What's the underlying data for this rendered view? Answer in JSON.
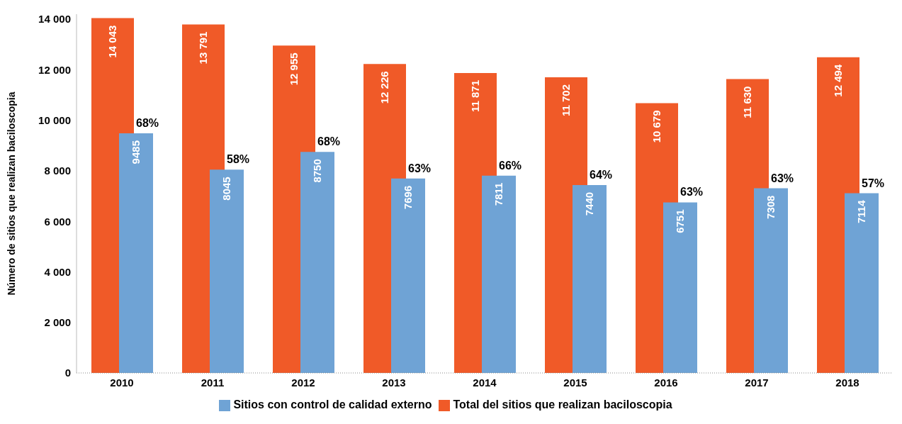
{
  "chart_data": {
    "type": "bar",
    "ylabel": "Número de sitios que realizan baciloscopia",
    "categories": [
      "2010",
      "2011",
      "2012",
      "2013",
      "2014",
      "2015",
      "2016",
      "2017",
      "2018"
    ],
    "series": [
      {
        "name": "Total del sitios que realizan baciloscopia",
        "color": "#f05a28",
        "values": [
          14043,
          13791,
          12955,
          12226,
          11871,
          11702,
          10679,
          11630,
          12494
        ],
        "value_labels": [
          "14 043",
          "13 791",
          "12 955",
          "12 226",
          "11 871",
          "11 702",
          "10 679",
          "11 630",
          "12 494"
        ]
      },
      {
        "name": "Sitios con control de calidad externo",
        "color": "#6fa3d5",
        "values": [
          9485,
          8045,
          8750,
          7696,
          7811,
          7440,
          6751,
          7308,
          7114
        ],
        "value_labels": [
          "9485",
          "8045",
          "8750",
          "7696",
          "7811",
          "7440",
          "6751",
          "7308",
          "7114"
        ]
      }
    ],
    "annotations": [
      {
        "text": "68%",
        "x": "2010",
        "y": 9485
      },
      {
        "text": "58%",
        "x": "2011",
        "y": 8045
      },
      {
        "text": "68%",
        "x": "2012",
        "y": 8750
      },
      {
        "text": "63%",
        "x": "2013",
        "y": 7696
      },
      {
        "text": "66%",
        "x": "2014",
        "y": 7811
      },
      {
        "text": "64%",
        "x": "2015",
        "y": 7440
      },
      {
        "text": "63%",
        "x": "2016",
        "y": 6751
      },
      {
        "text": "63%",
        "x": "2017",
        "y": 7308
      },
      {
        "text": "57%",
        "x": "2018",
        "y": 7114
      }
    ],
    "ylim": [
      0,
      14200
    ],
    "yticks": [
      {
        "value": 0,
        "label": "0"
      },
      {
        "value": 2000,
        "label": "2 000"
      },
      {
        "value": 4000,
        "label": "4 000"
      },
      {
        "value": 6000,
        "label": "6 000"
      },
      {
        "value": 8000,
        "label": "8 000"
      },
      {
        "value": 10000,
        "label": "10 000"
      },
      {
        "value": 12000,
        "label": "12 000"
      },
      {
        "value": 14000,
        "label": "14 000"
      }
    ],
    "grid": false,
    "legend": "bottom"
  }
}
